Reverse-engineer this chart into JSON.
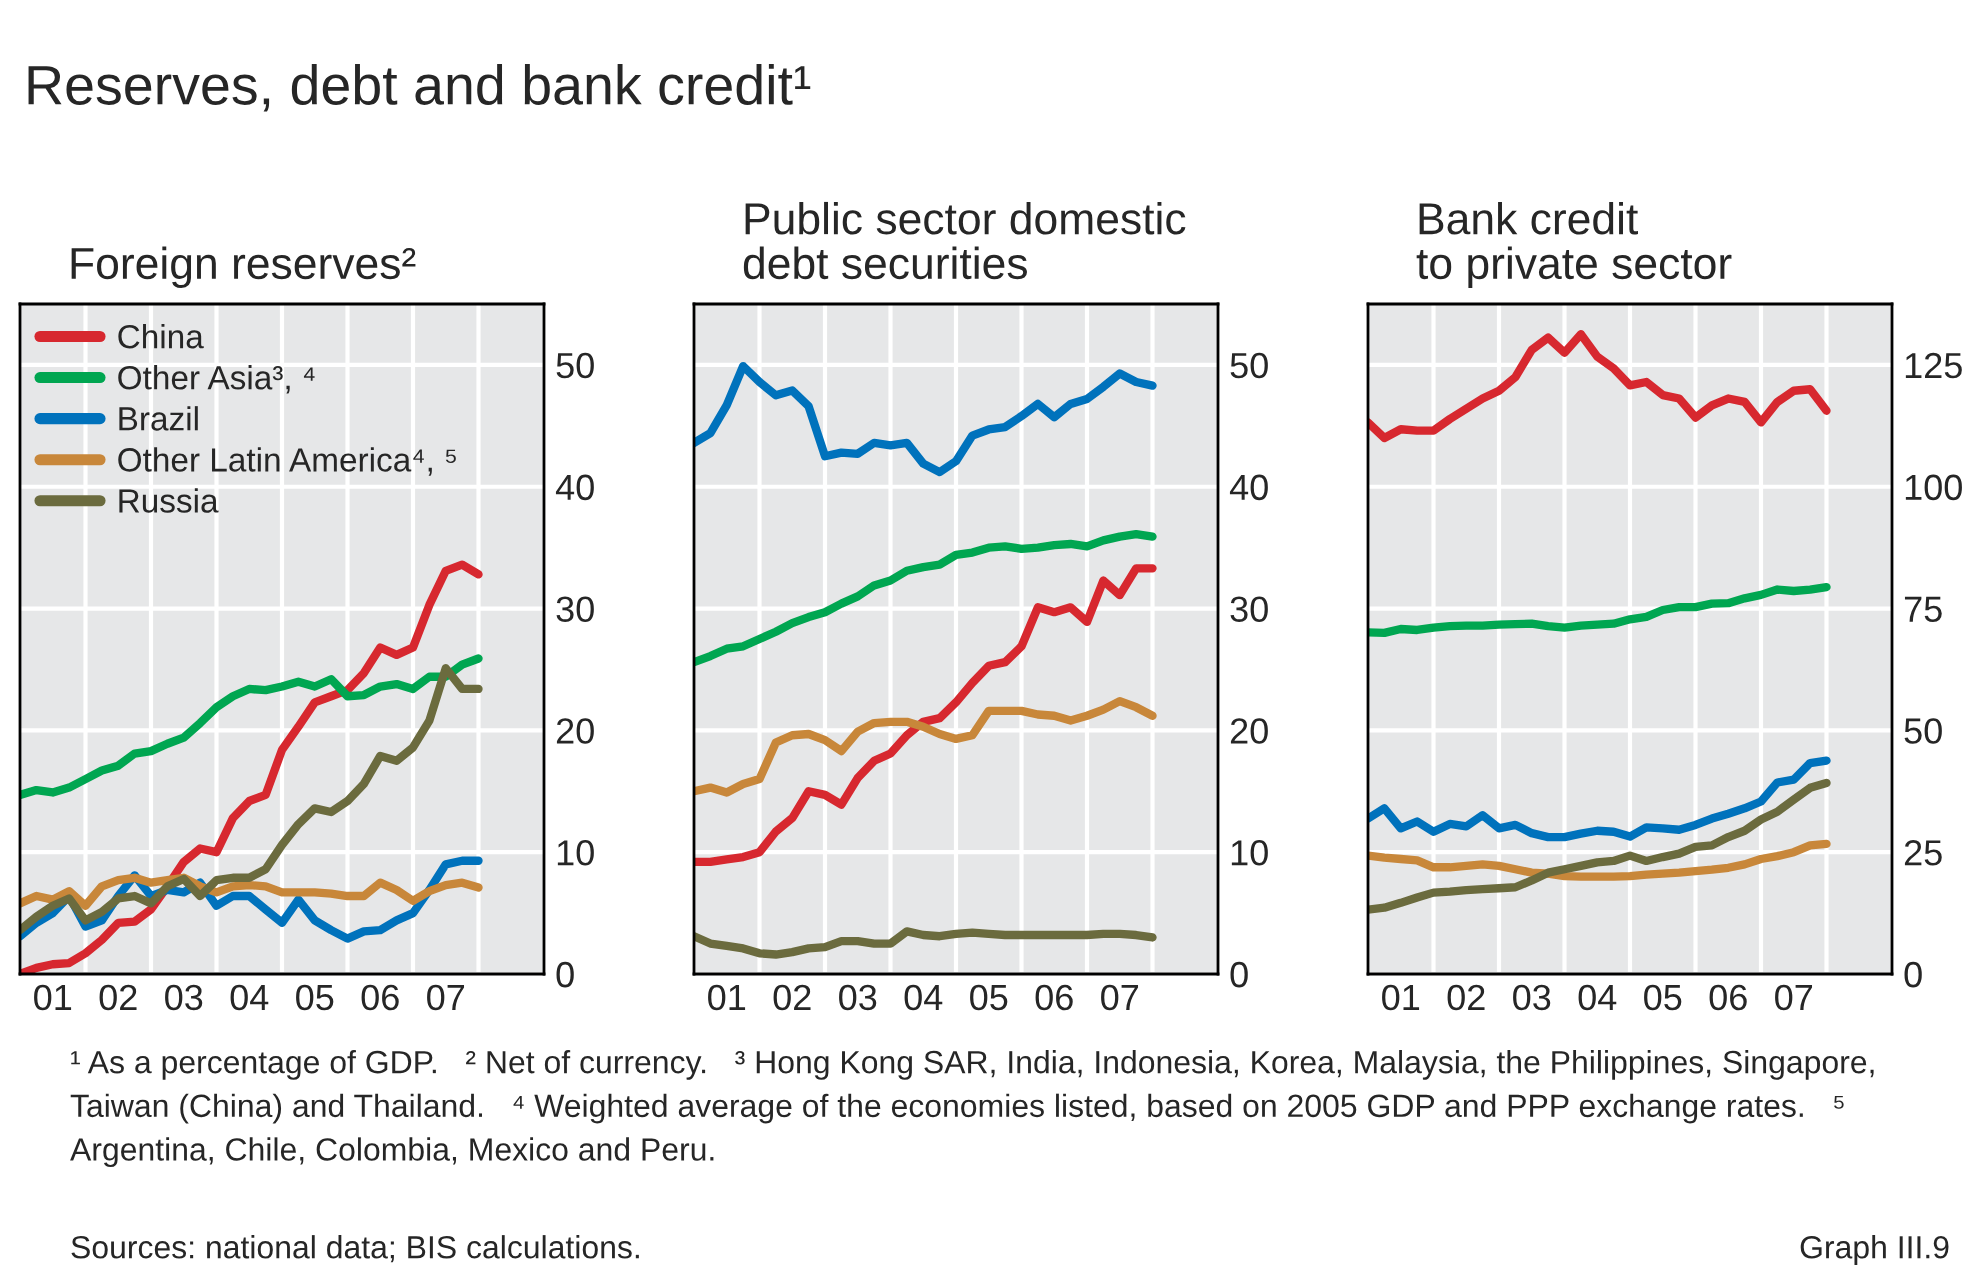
{
  "chart_data": [
    {
      "type": "other",
      "title": "Reserves, debt and bank credit¹",
      "annotations": [
        "¹ As a percentage of GDP.   ² Net of currency.   ³ Hong Kong SAR, India, Indonesia, Korea, Malaysia, the Philippines, Singapore, Taiwan (China) and Thailand.   ⁴ Weighted average of the economies listed, based on 2005 GDP and PPP exchange rates.   ⁵ Argentina, Chile, Colombia, Mexico and Peru.",
        "Sources: national data; BIS calculations.",
        "Graph III.9"
      ]
    },
    {
      "type": "line",
      "title": "Foreign reserves²",
      "legend": "top left",
      "grid": true,
      "line_style": "solid",
      "categories": [
        null,
        null,
        "01",
        null,
        null,
        null,
        "02",
        null,
        null,
        null,
        "03",
        null,
        null,
        null,
        "04",
        null,
        null,
        null,
        "05",
        null,
        null,
        null,
        "06",
        null,
        null,
        null,
        "07",
        null,
        null
      ],
      "ylim": [
        0,
        55
      ],
      "yticks": [
        0,
        10,
        20,
        30,
        40,
        50
      ],
      "series": [
        {
          "name": "China",
          "color": "#d7282f",
          "values": [
            0,
            0.5,
            0.8,
            0.9,
            1.7,
            2.8,
            4.2,
            4.3,
            5.3,
            7.2,
            9.2,
            10.3,
            10,
            12.8,
            14.2,
            14.7,
            18.4,
            20.3,
            22.3,
            22.8,
            23.3,
            24.7,
            26.8,
            26.2,
            26.8,
            30.3,
            33.1,
            33.6,
            32.8
          ]
        },
        {
          "name": "Other Asia³, ⁴",
          "color": "#00a651",
          "values": [
            14.7,
            15.1,
            14.9,
            15.3,
            16,
            16.7,
            17.1,
            18.1,
            18.3,
            18.9,
            19.4,
            20.6,
            21.9,
            22.8,
            23.4,
            23.3,
            23.6,
            24,
            23.6,
            24.2,
            22.8,
            22.9,
            23.6,
            23.8,
            23.4,
            24.4,
            24.4,
            25.4,
            25.9
          ]
        },
        {
          "name": "Brazil",
          "color": "#0072bc",
          "values": [
            3.1,
            4.2,
            5,
            6.4,
            3.9,
            4.4,
            6.4,
            8.1,
            6.4,
            6.9,
            6.7,
            7.5,
            5.6,
            6.4,
            6.4,
            5.3,
            4.2,
            6.1,
            4.4,
            3.6,
            2.9,
            3.5,
            3.6,
            4.4,
            5,
            6.9,
            9,
            9.3,
            9.3
          ]
        },
        {
          "name": "Other Latin America⁴, ⁵",
          "color": "#c8873a",
          "values": [
            5.8,
            6.4,
            6.1,
            6.8,
            5.6,
            7.2,
            7.7,
            7.9,
            7.5,
            7.7,
            7.9,
            7.2,
            6.7,
            7.2,
            7.3,
            7.2,
            6.7,
            6.7,
            6.7,
            6.6,
            6.4,
            6.4,
            7.5,
            6.9,
            6,
            6.8,
            7.3,
            7.5,
            7.1
          ]
        },
        {
          "name": "Russia",
          "color": "#6b6b3e",
          "values": [
            3.6,
            4.7,
            5.6,
            6.2,
            4.4,
            5.1,
            6.2,
            6.4,
            5.8,
            7.2,
            7.8,
            6.4,
            7.7,
            7.9,
            7.9,
            8.6,
            10.6,
            12.3,
            13.6,
            13.3,
            14.2,
            15.6,
            17.9,
            17.5,
            18.6,
            20.8,
            25.1,
            23.4,
            23.4
          ]
        }
      ]
    },
    {
      "type": "line",
      "title": "Public sector domestic\ndebt securities",
      "grid": true,
      "line_style": "solid",
      "categories": [
        null,
        null,
        "01",
        null,
        null,
        null,
        "02",
        null,
        null,
        null,
        "03",
        null,
        null,
        null,
        "04",
        null,
        null,
        null,
        "05",
        null,
        null,
        null,
        "06",
        null,
        null,
        null,
        "07",
        null,
        null
      ],
      "ylim": [
        0,
        55
      ],
      "yticks": [
        0,
        10,
        20,
        30,
        40,
        50
      ],
      "series": [
        {
          "color": "#0072bc",
          "values": [
            43.6,
            44.4,
            46.7,
            49.9,
            48.6,
            47.5,
            47.9,
            46.6,
            42.5,
            42.8,
            42.7,
            43.6,
            43.4,
            43.6,
            41.9,
            41.2,
            42.1,
            44.2,
            44.7,
            44.9,
            45.8,
            46.8,
            45.7,
            46.8,
            47.2,
            48.2,
            49.3,
            48.6,
            48.3
          ]
        },
        {
          "color": "#00a651",
          "values": [
            25.6,
            26.1,
            26.7,
            26.9,
            27.5,
            28.1,
            28.8,
            29.3,
            29.7,
            30.4,
            31,
            31.9,
            32.3,
            33.1,
            33.4,
            33.6,
            34.4,
            34.6,
            35,
            35.1,
            34.9,
            35,
            35.2,
            35.3,
            35.1,
            35.6,
            35.9,
            36.1,
            35.9
          ]
        },
        {
          "color": "#d7282f",
          "values": [
            9.2,
            9.2,
            9.4,
            9.6,
            10,
            11.7,
            12.8,
            15,
            14.7,
            13.9,
            16.1,
            17.5,
            18.1,
            19.6,
            20.7,
            21,
            22.3,
            23.9,
            25.3,
            25.6,
            26.9,
            30.1,
            29.7,
            30.1,
            28.9,
            32.3,
            31.1,
            33.3,
            33.3
          ]
        },
        {
          "color": "#c8873a",
          "values": [
            15,
            15.3,
            14.9,
            15.6,
            16,
            19,
            19.6,
            19.7,
            19.2,
            18.3,
            19.9,
            20.6,
            20.7,
            20.7,
            20.3,
            19.7,
            19.3,
            19.6,
            21.6,
            21.6,
            21.6,
            21.3,
            21.2,
            20.8,
            21.2,
            21.7,
            22.4,
            21.9,
            21.2
          ]
        },
        {
          "color": "#6b6b3e",
          "values": [
            3.1,
            2.5,
            2.3,
            2.1,
            1.7,
            1.6,
            1.8,
            2.1,
            2.2,
            2.7,
            2.7,
            2.5,
            2.5,
            3.5,
            3.2,
            3.1,
            3.3,
            3.4,
            3.3,
            3.2,
            3.2,
            3.2,
            3.2,
            3.2,
            3.2,
            3.3,
            3.3,
            3.2,
            3
          ]
        }
      ]
    },
    {
      "type": "line",
      "title": "Bank credit\nto private sector",
      "grid": true,
      "line_style": "solid",
      "categories": [
        null,
        null,
        "01",
        null,
        null,
        null,
        "02",
        null,
        null,
        null,
        "03",
        null,
        null,
        null,
        "04",
        null,
        null,
        null,
        "05",
        null,
        null,
        null,
        "06",
        null,
        null,
        null,
        "07",
        null,
        null
      ],
      "ylim": [
        0,
        137.5
      ],
      "yticks": [
        0,
        25,
        50,
        75,
        100,
        125
      ],
      "series": [
        {
          "color": "#d7282f",
          "values": [
            113.2,
            110,
            111.8,
            111.5,
            111.5,
            113.9,
            116,
            118.1,
            119.7,
            122.5,
            128.1,
            130.6,
            127.5,
            131.3,
            126.7,
            124.3,
            120.8,
            121.5,
            118.8,
            118.1,
            114.2,
            116.7,
            118.1,
            117.4,
            113.2,
            117.4,
            119.7,
            120,
            115.6
          ]
        },
        {
          "color": "#00a651",
          "values": [
            70.1,
            70,
            70.8,
            70.6,
            71.1,
            71.4,
            71.5,
            71.5,
            71.7,
            71.8,
            71.9,
            71.4,
            71.1,
            71.5,
            71.7,
            71.9,
            72.8,
            73.3,
            74.7,
            75.3,
            75.3,
            76,
            76.1,
            77.1,
            77.8,
            78.9,
            78.6,
            78.9,
            79.4
          ]
        },
        {
          "color": "#0072bc",
          "values": [
            31.9,
            34,
            29.9,
            31.3,
            29.2,
            30.8,
            30.3,
            32.6,
            29.9,
            30.6,
            28.9,
            28.1,
            28.1,
            28.8,
            29.4,
            29.2,
            28.2,
            30.1,
            29.9,
            29.6,
            30.6,
            31.9,
            32.9,
            34,
            35.4,
            39.3,
            39.9,
            43.3,
            43.8
          ]
        },
        {
          "color": "#c8873a",
          "values": [
            24.3,
            23.9,
            23.6,
            23.3,
            21.9,
            21.9,
            22.2,
            22.5,
            22.2,
            21.5,
            20.8,
            20.6,
            20.1,
            20,
            20,
            20,
            20.1,
            20.4,
            20.6,
            20.8,
            21.1,
            21.4,
            21.8,
            22.5,
            23.6,
            24.2,
            25,
            26.4,
            26.7
          ]
        },
        {
          "color": "#6b6b3e",
          "values": [
            13.2,
            13.6,
            14.6,
            15.7,
            16.7,
            16.9,
            17.2,
            17.4,
            17.6,
            17.8,
            19.2,
            20.8,
            21.5,
            22.2,
            22.9,
            23.2,
            24.3,
            23.2,
            24,
            24.7,
            26.1,
            26.4,
            28.1,
            29.4,
            31.7,
            33.3,
            35.8,
            38.2,
            39.2
          ]
        }
      ]
    }
  ]
}
